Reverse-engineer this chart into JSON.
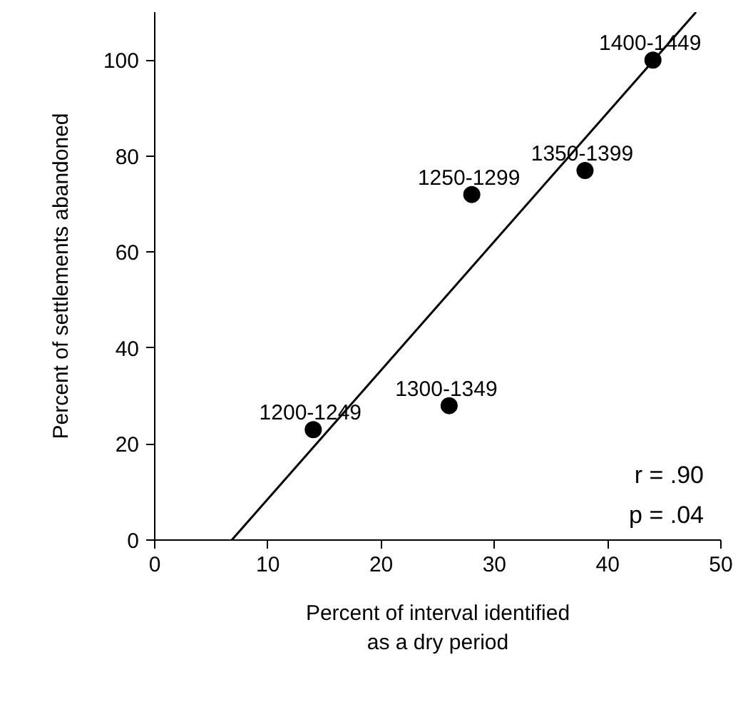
{
  "chart_data": {
    "type": "scatter",
    "xlabel": "Percent of interval identified\nas a dry period",
    "ylabel": "Percent of settlements abandoned",
    "series": [
      {
        "color": "#000000",
        "marker": "circle",
        "x": [
          14,
          28,
          26,
          38,
          44
        ],
        "values": [
          23,
          72,
          28,
          77,
          100
        ],
        "value_labels": [
          "1200-1249",
          "1250-1299",
          "1300-1349",
          "1350-1399",
          "1400-1449"
        ]
      },
      {
        "type": "line",
        "color": "#000000",
        "marker": "none",
        "x": [
          6.8,
          47.8
        ],
        "values": [
          0,
          110
        ]
      }
    ],
    "xlim": [
      0,
      50
    ],
    "ylim": [
      0,
      110
    ],
    "xticks": [
      0,
      10,
      20,
      30,
      40,
      50
    ],
    "yticks": [
      0,
      20,
      40,
      60,
      80,
      100
    ],
    "annotations": [
      "r = .90",
      "p = .04"
    ]
  }
}
